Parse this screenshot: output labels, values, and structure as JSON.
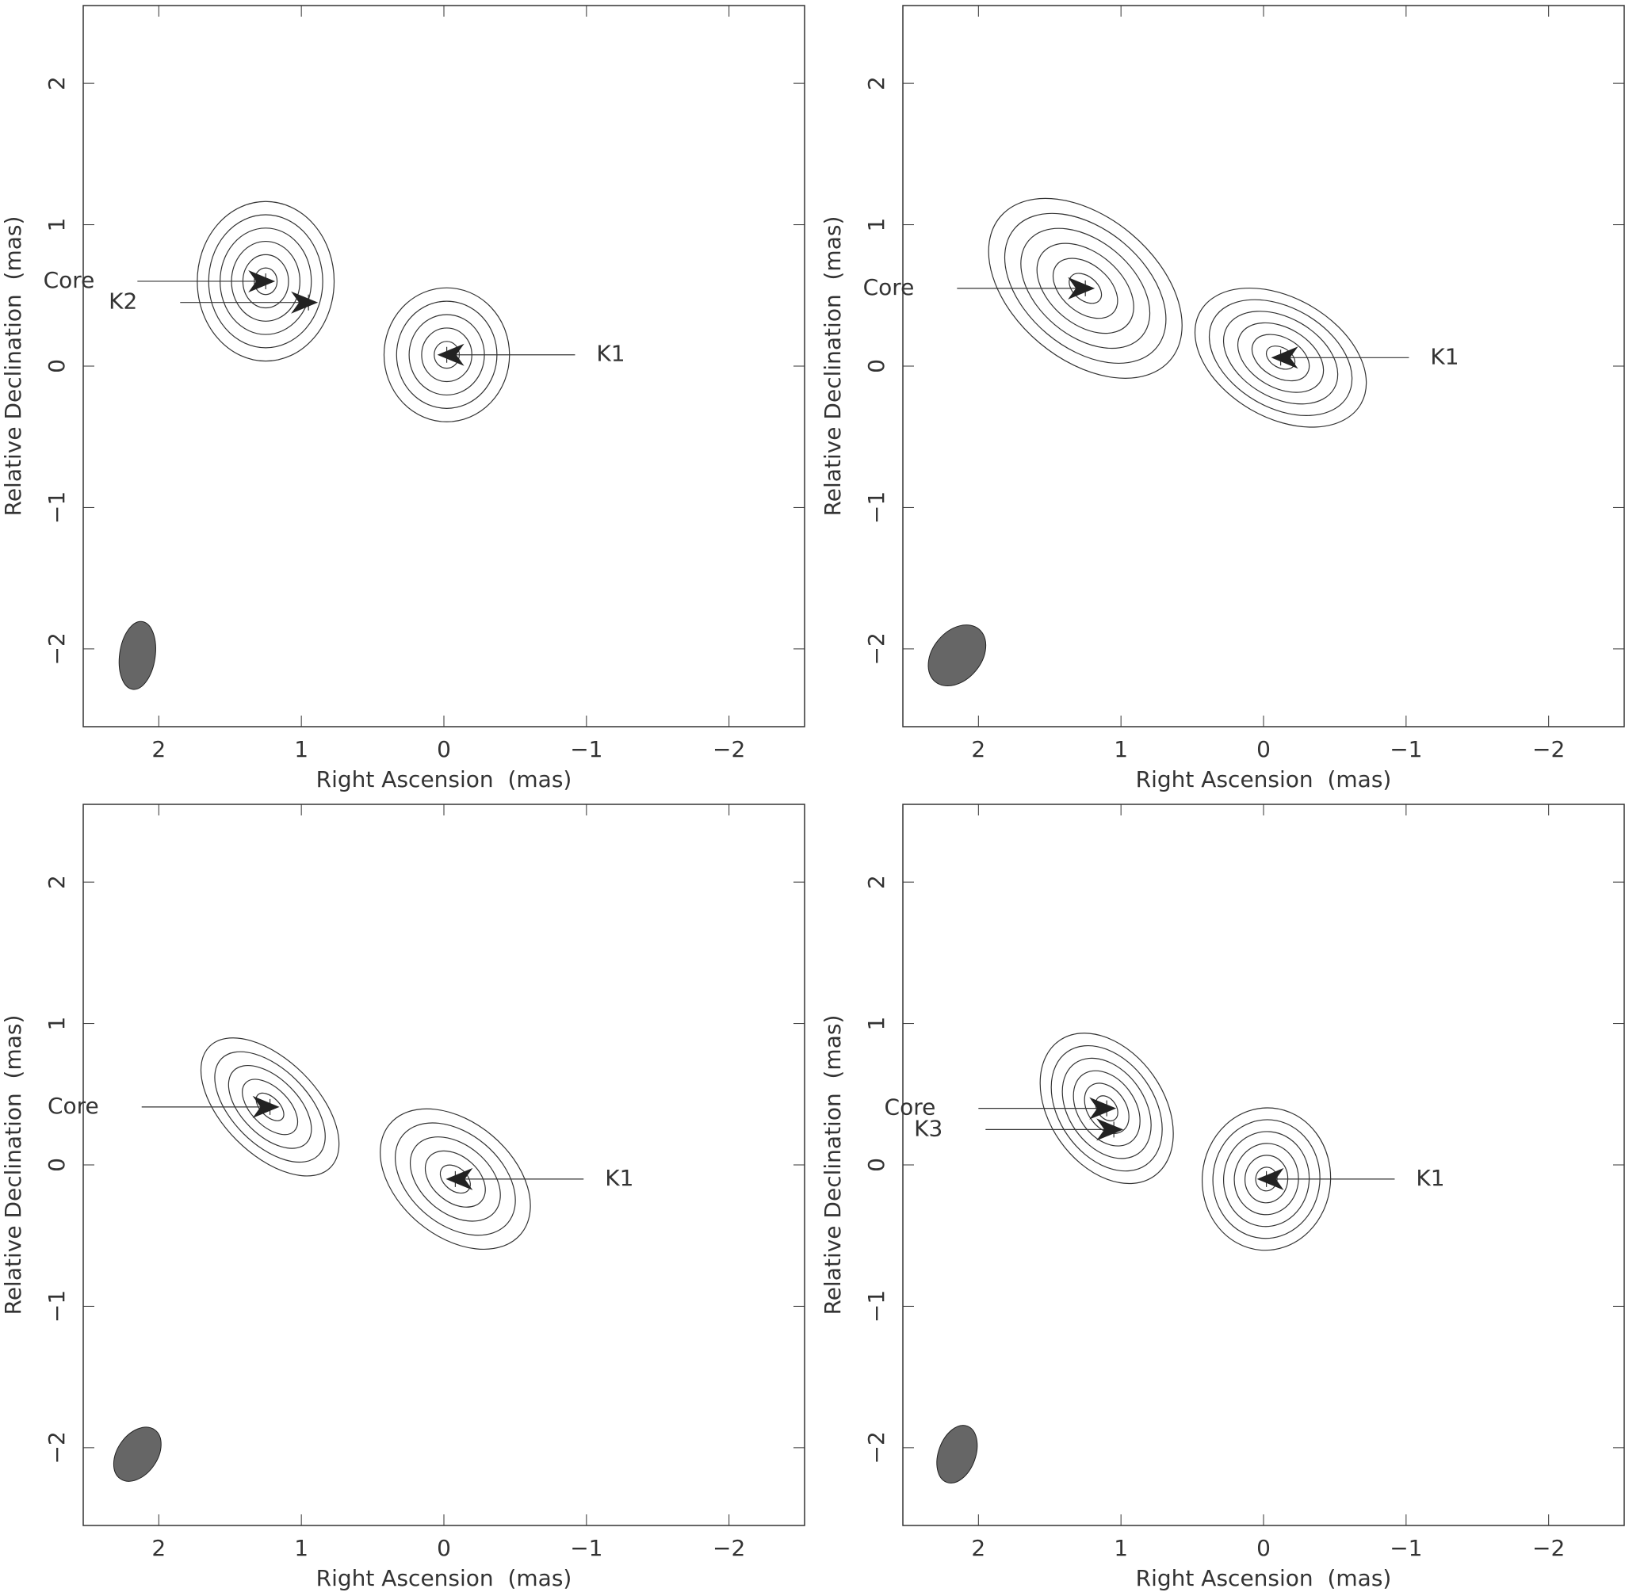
{
  "chart_data": [
    {
      "type": "contour",
      "x_label": "Right Ascension  (mas)",
      "y_label": "Relative Declination  (mas)",
      "xlim": [
        2.53,
        -2.53
      ],
      "ylim": [
        -2.55,
        2.55
      ],
      "xticks": [
        2,
        1,
        0,
        {
          "value": -1,
          "label": "−1"
        },
        {
          "value": -2,
          "label": "−2"
        }
      ],
      "yticks": [
        {
          "value": -2,
          "label": "−2"
        },
        {
          "value": -1,
          "label": "−1"
        },
        0,
        1,
        2
      ],
      "components": [
        {
          "name": "Core",
          "x": 1.25,
          "y": 0.6
        },
        {
          "name": "K2",
          "x": 0.95,
          "y": 0.45
        },
        {
          "name": "K1",
          "x": -0.02,
          "y": 0.08
        }
      ],
      "beam": {
        "major": 0.48,
        "minor": 0.25,
        "pa": -8
      }
    },
    {
      "type": "contour",
      "x_label": "Right Ascension  (mas)",
      "y_label": "Relative Declination  (mas)",
      "xlim": [
        2.53,
        -2.53
      ],
      "ylim": [
        -2.55,
        2.55
      ],
      "xticks": [
        2,
        1,
        0,
        {
          "value": -1,
          "label": "−1"
        },
        {
          "value": -2,
          "label": "−2"
        }
      ],
      "yticks": [
        {
          "value": -2,
          "label": "−2"
        },
        {
          "value": -1,
          "label": "−1"
        },
        0,
        1,
        2
      ],
      "components": [
        {
          "name": "Core",
          "x": 1.25,
          "y": 0.55
        },
        {
          "name": "K1",
          "x": -0.12,
          "y": 0.06
        }
      ],
      "beam": {
        "major": 0.48,
        "minor": 0.34,
        "pa": -40
      }
    },
    {
      "type": "contour",
      "x_label": "Right Ascension  (mas)",
      "y_label": "Relative Declination  (mas)",
      "xlim": [
        2.53,
        -2.53
      ],
      "ylim": [
        -2.55,
        2.55
      ],
      "xticks": [
        2,
        1,
        0,
        {
          "value": -1,
          "label": "−1"
        },
        {
          "value": -2,
          "label": "−2"
        }
      ],
      "yticks": [
        {
          "value": -2,
          "label": "−2"
        },
        {
          "value": -1,
          "label": "−1"
        },
        0,
        1,
        2
      ],
      "components": [
        {
          "name": "Core",
          "x": 1.22,
          "y": 0.41
        },
        {
          "name": "K1",
          "x": -0.08,
          "y": -0.1
        }
      ],
      "beam": {
        "major": 0.42,
        "minor": 0.28,
        "pa": -35
      }
    },
    {
      "type": "contour",
      "x_label": "Right Ascension  (mas)",
      "y_label": "Relative Declination  (mas)",
      "xlim": [
        2.53,
        -2.53
      ],
      "ylim": [
        -2.55,
        2.55
      ],
      "xticks": [
        2,
        1,
        0,
        {
          "value": -1,
          "label": "−1"
        },
        {
          "value": -2,
          "label": "−2"
        }
      ],
      "yticks": [
        {
          "value": -2,
          "label": "−2"
        },
        {
          "value": -1,
          "label": "−1"
        },
        0,
        1,
        2
      ],
      "components": [
        {
          "name": "Core",
          "x": 1.1,
          "y": 0.4
        },
        {
          "name": "K3",
          "x": 1.05,
          "y": 0.25
        },
        {
          "name": "K1",
          "x": -0.02,
          "y": -0.1
        }
      ],
      "beam": {
        "major": 0.42,
        "minor": 0.26,
        "pa": -20
      }
    }
  ]
}
